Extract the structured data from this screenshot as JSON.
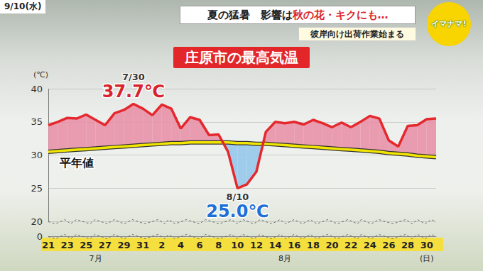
{
  "header": {
    "date": "9/10(水)",
    "headline": [
      "夏の猛暑　影響は",
      "秋の花・キクにも…"
    ],
    "subheadline": "彼岸向け出荷作業始まる",
    "logo": "イマナマ!"
  },
  "chart_data": {
    "type": "line",
    "title": "庄原市の最高気温",
    "y_label": "(℃)",
    "categories": [
      "21",
      null,
      "23",
      null,
      "25",
      null,
      "27",
      null,
      "29",
      null,
      "31",
      null,
      "2",
      null,
      "4",
      null,
      "6",
      null,
      "8",
      null,
      "10",
      null,
      "12",
      null,
      "14",
      null,
      "16",
      null,
      "18",
      null,
      "20",
      null,
      "22",
      null,
      "24",
      null,
      "26",
      null,
      "28",
      null,
      "30",
      null
    ],
    "x_sublabels": [
      null,
      null,
      null,
      null,
      null,
      "7月",
      null,
      null,
      null,
      null,
      null,
      null,
      null,
      null,
      null,
      null,
      null,
      null,
      null,
      null,
      null,
      null,
      null,
      null,
      null,
      "8月",
      null,
      null,
      null,
      null,
      null,
      null,
      null,
      null,
      null,
      null,
      null,
      null,
      null,
      null,
      "(日)",
      null
    ],
    "series": [
      {
        "color": "#e4282d",
        "values": [
          34.5,
          35.0,
          35.6,
          35.5,
          36.1,
          35.3,
          34.5,
          36.3,
          36.8,
          37.7,
          37.0,
          36.0,
          37.6,
          37.0,
          34.0,
          35.7,
          35.3,
          33.0,
          33.1,
          30.5,
          25.0,
          25.6,
          27.5,
          33.5,
          35.0,
          34.8,
          35.0,
          34.6,
          35.3,
          34.8,
          34.2,
          34.9,
          34.2,
          35.0,
          35.9,
          35.5,
          32.2,
          31.3,
          34.4,
          34.5,
          35.4,
          35.5
        ]
      },
      {
        "name": "平年値",
        "color": "#f2e600",
        "values": [
          30.5,
          30.6,
          30.7,
          30.8,
          30.9,
          31.0,
          31.1,
          31.2,
          31.3,
          31.4,
          31.5,
          31.6,
          31.7,
          31.8,
          31.8,
          31.9,
          31.9,
          31.9,
          31.9,
          31.9,
          31.8,
          31.8,
          31.7,
          31.7,
          31.6,
          31.5,
          31.4,
          31.3,
          31.2,
          31.1,
          31.0,
          30.9,
          30.8,
          30.7,
          30.6,
          30.5,
          30.3,
          30.2,
          30.1,
          29.9,
          29.8,
          29.7
        ]
      }
    ],
    "ylim": [
      0,
      40
    ],
    "yticks": [
      0,
      20,
      25,
      30,
      35,
      40
    ],
    "y_break": [
      0,
      20
    ],
    "grid": true,
    "annotations": [
      {
        "label": "7/30",
        "value": 37.7,
        "text": "37.7℃"
      },
      {
        "label": "8/10",
        "value": 25.0,
        "text": "25.0℃"
      }
    ]
  }
}
